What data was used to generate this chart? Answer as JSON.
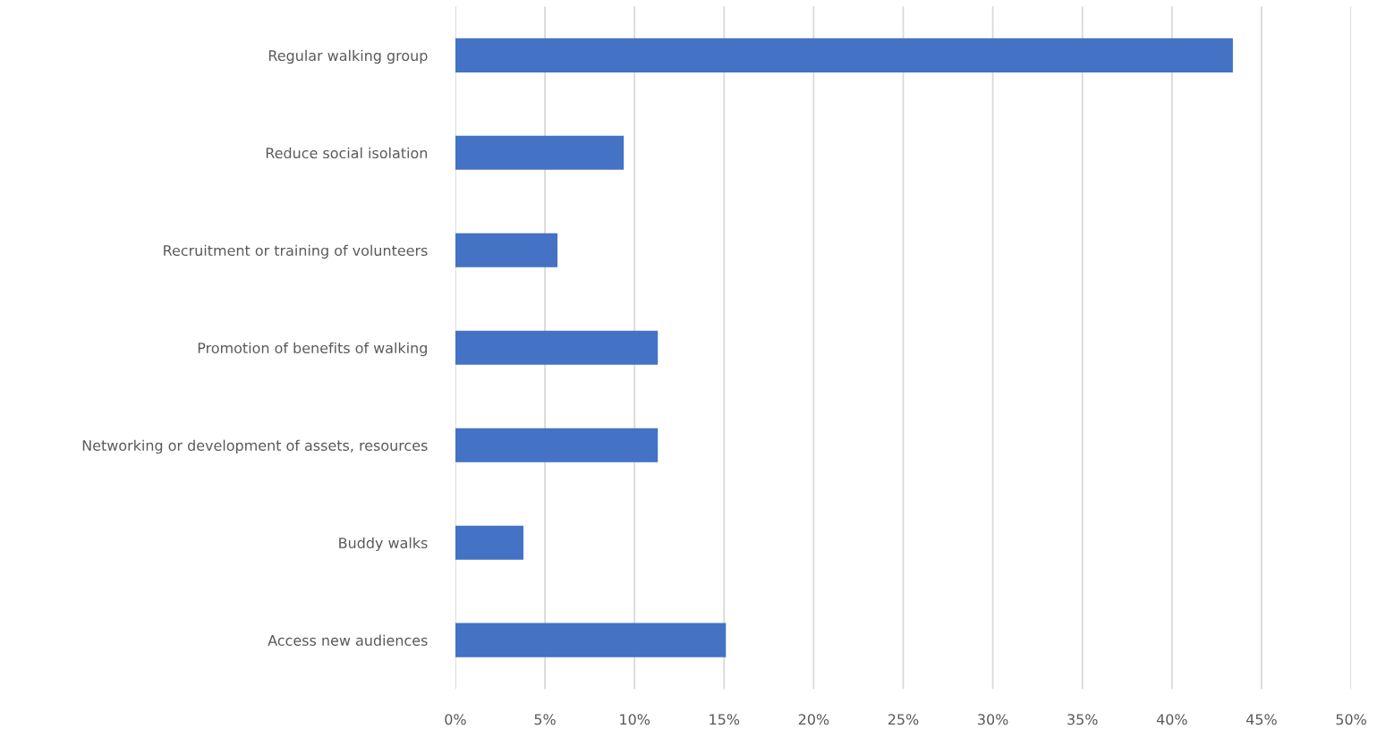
{
  "chart_data": {
    "type": "bar",
    "orientation": "horizontal",
    "categories": [
      "Regular walking group",
      "Reduce social isolation",
      "Recruitment or training of volunteers",
      "Promotion of benefits of walking",
      "Networking or development of assets, resources",
      "Buddy walks",
      "Access new audiences"
    ],
    "values": [
      43.4,
      9.4,
      5.7,
      11.3,
      11.3,
      3.8,
      15.1
    ],
    "color": "#4472c4",
    "xlim": [
      0,
      50
    ],
    "xticks": [
      {
        "value": 0,
        "label": "0%"
      },
      {
        "value": 5,
        "label": "5%"
      },
      {
        "value": 10,
        "label": "10%"
      },
      {
        "value": 15,
        "label": "15%"
      },
      {
        "value": 20,
        "label": "20%"
      },
      {
        "value": 25,
        "label": "25%"
      },
      {
        "value": 30,
        "label": "30%"
      },
      {
        "value": 35,
        "label": "35%"
      },
      {
        "value": 40,
        "label": "40%"
      },
      {
        "value": 45,
        "label": "45%"
      },
      {
        "value": 50,
        "label": "50%"
      }
    ],
    "grid": "x"
  }
}
